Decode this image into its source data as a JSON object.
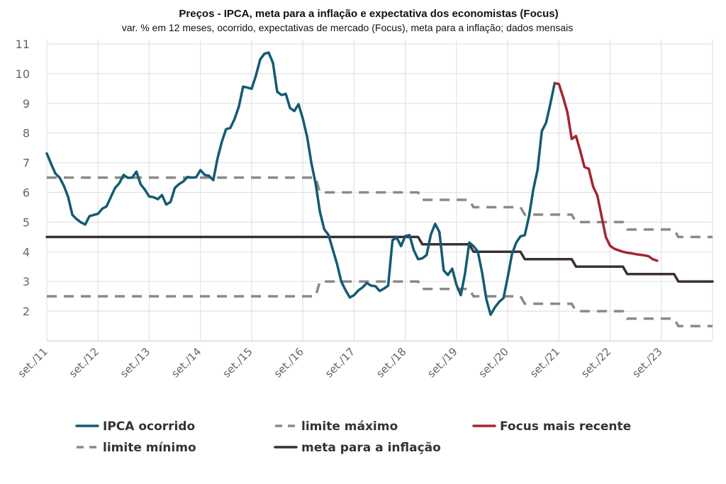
{
  "chart_data": {
    "type": "line",
    "title": "Preços - IPCA, meta para a inflação e expectativa dos economistas (Focus)",
    "subtitle": "var. % em 12 meses, ocorrido, expectativas de mercado (Focus), meta para a inflação; dados mensais",
    "xlabel": "",
    "ylabel": "",
    "frequency": "monthly",
    "x_range": [
      "2011-09",
      "2024-09"
    ],
    "ylim": [
      1,
      11
    ],
    "yticks": [
      2,
      3,
      4,
      5,
      6,
      7,
      8,
      9,
      10,
      11
    ],
    "xticks": [
      {
        "date": "2011-09",
        "label": "set./11"
      },
      {
        "date": "2012-09",
        "label": "set./12"
      },
      {
        "date": "2013-09",
        "label": "set./13"
      },
      {
        "date": "2014-09",
        "label": "set./14"
      },
      {
        "date": "2015-09",
        "label": "set./15"
      },
      {
        "date": "2016-09",
        "label": "set./16"
      },
      {
        "date": "2017-09",
        "label": "set./17"
      },
      {
        "date": "2018-09",
        "label": "set./18"
      },
      {
        "date": "2019-09",
        "label": "set./19"
      },
      {
        "date": "2020-09",
        "label": "set./20"
      },
      {
        "date": "2021-09",
        "label": "set./21"
      },
      {
        "date": "2022-09",
        "label": "set./22"
      },
      {
        "date": "2023-09",
        "label": "set./23"
      }
    ],
    "grid": true,
    "legend_placement": "bottom",
    "series": [
      {
        "key": "ipca",
        "name": "IPCA ocorrido",
        "color": "#135b72",
        "style": "solid",
        "start": "2011-09",
        "values": [
          7.31,
          6.97,
          6.64,
          6.5,
          6.22,
          5.85,
          5.24,
          5.1,
          4.99,
          4.92,
          5.2,
          5.24,
          5.28,
          5.45,
          5.53,
          5.84,
          6.15,
          6.31,
          6.59,
          6.49,
          6.5,
          6.7,
          6.27,
          6.09,
          5.86,
          5.84,
          5.77,
          5.91,
          5.59,
          5.68,
          6.15,
          6.28,
          6.37,
          6.52,
          6.5,
          6.51,
          6.75,
          6.59,
          6.56,
          6.41,
          7.14,
          7.7,
          8.13,
          8.17,
          8.47,
          8.89,
          9.56,
          9.53,
          9.49,
          9.93,
          10.48,
          10.67,
          10.71,
          10.36,
          9.39,
          9.28,
          9.32,
          8.84,
          8.74,
          8.97,
          8.48,
          7.87,
          6.99,
          6.29,
          5.35,
          4.76,
          4.57,
          4.08,
          3.6,
          3.0,
          2.71,
          2.46,
          2.54,
          2.7,
          2.8,
          2.95,
          2.86,
          2.84,
          2.68,
          2.76,
          2.86,
          4.39,
          4.48,
          4.19,
          4.53,
          4.56,
          4.05,
          3.75,
          3.78,
          3.89,
          4.58,
          4.94,
          4.66,
          3.37,
          3.22,
          3.43,
          2.89,
          2.54,
          3.27,
          4.31,
          4.19,
          4.01,
          3.3,
          2.4,
          1.88,
          2.13,
          2.31,
          2.44,
          3.14,
          3.92,
          4.31,
          4.52,
          4.56,
          5.2,
          6.1,
          6.76,
          8.06,
          8.35,
          8.99,
          9.68
        ]
      },
      {
        "key": "focus",
        "name": "Focus mais recente",
        "color": "#a3262e",
        "style": "solid",
        "start": "2021-08",
        "values": [
          9.68,
          9.65,
          9.2,
          8.7,
          7.8,
          7.9,
          7.4,
          6.85,
          6.8,
          6.2,
          5.9,
          5.2,
          4.5,
          4.2,
          4.1,
          4.05,
          4.0,
          3.97,
          3.95,
          3.92,
          3.9,
          3.88,
          3.85,
          3.75,
          3.7
        ]
      },
      {
        "key": "max",
        "name": "limite máximo",
        "color": "#8a8a8a",
        "style": "dashed",
        "steps": [
          {
            "from": "2011-09",
            "to": "2016-12",
            "value": 6.5
          },
          {
            "from": "2017-01",
            "to": "2018-12",
            "value": 6.0
          },
          {
            "from": "2019-01",
            "to": "2019-12",
            "value": 5.75
          },
          {
            "from": "2020-01",
            "to": "2020-12",
            "value": 5.5
          },
          {
            "from": "2021-01",
            "to": "2021-12",
            "value": 5.25
          },
          {
            "from": "2022-01",
            "to": "2022-12",
            "value": 5.0
          },
          {
            "from": "2023-01",
            "to": "2023-12",
            "value": 4.75
          },
          {
            "from": "2024-01",
            "to": "2024-09",
            "value": 4.5
          }
        ]
      },
      {
        "key": "min",
        "name": "limite mínimo",
        "color": "#8a8a8a",
        "style": "dashed",
        "steps": [
          {
            "from": "2011-09",
            "to": "2016-12",
            "value": 2.5
          },
          {
            "from": "2017-01",
            "to": "2018-12",
            "value": 3.0
          },
          {
            "from": "2019-01",
            "to": "2019-12",
            "value": 2.75
          },
          {
            "from": "2020-01",
            "to": "2020-12",
            "value": 2.5
          },
          {
            "from": "2021-01",
            "to": "2021-12",
            "value": 2.25
          },
          {
            "from": "2022-01",
            "to": "2022-12",
            "value": 2.0
          },
          {
            "from": "2023-01",
            "to": "2023-12",
            "value": 1.75
          },
          {
            "from": "2024-01",
            "to": "2024-09",
            "value": 1.5
          }
        ]
      },
      {
        "key": "meta",
        "name": "meta para a inflação",
        "color": "#3b2f34",
        "style": "solid",
        "steps": [
          {
            "from": "2011-09",
            "to": "2018-12",
            "value": 4.5
          },
          {
            "from": "2019-01",
            "to": "2019-12",
            "value": 4.25
          },
          {
            "from": "2020-01",
            "to": "2020-12",
            "value": 4.0
          },
          {
            "from": "2021-01",
            "to": "2021-12",
            "value": 3.75
          },
          {
            "from": "2022-01",
            "to": "2022-12",
            "value": 3.5
          },
          {
            "from": "2023-01",
            "to": "2023-12",
            "value": 3.25
          },
          {
            "from": "2024-01",
            "to": "2024-09",
            "value": 3.0
          }
        ]
      }
    ],
    "legend": [
      {
        "key": "ipca",
        "label": "IPCA ocorrido"
      },
      {
        "key": "max",
        "label": "limite máximo"
      },
      {
        "key": "focus",
        "label": "Focus mais recente"
      },
      {
        "key": "min",
        "label": "limite mínimo"
      },
      {
        "key": "meta",
        "label": "meta para a inflação"
      }
    ]
  }
}
